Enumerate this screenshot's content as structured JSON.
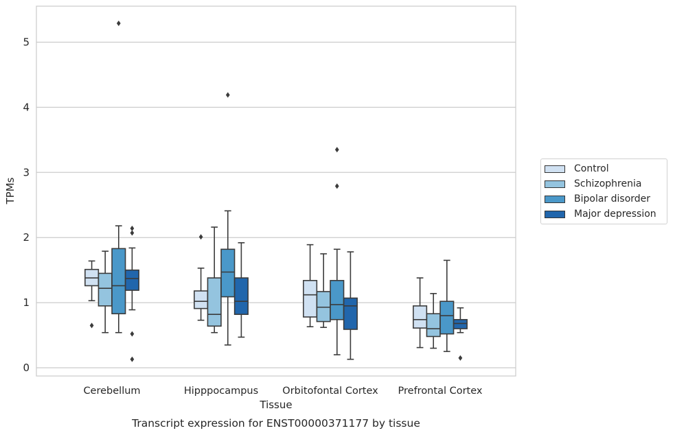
{
  "chart_data": {
    "type": "box",
    "xlabel": "Tissue",
    "ylabel": "TPMs",
    "caption": "Transcript expression for ENST00000371177 by tissue",
    "categories": [
      "Cerebellum",
      "Hipppocampus",
      "Orbitofontal Cortex",
      "Prefrontal Cortex"
    ],
    "ylim": [
      -0.1,
      5.55
    ],
    "yticks": [
      0,
      1,
      2,
      3,
      4,
      5
    ],
    "grid": "horizontal",
    "legend_position": "right",
    "series": [
      {
        "name": "Control",
        "color": "#d0e1f2",
        "boxes": [
          {
            "whislo": 1.03,
            "q1": 1.26,
            "med": 1.38,
            "q3": 1.51,
            "whishi": 1.64,
            "fliers": [
              0.65
            ]
          },
          {
            "whislo": 0.73,
            "q1": 0.91,
            "med": 1.02,
            "q3": 1.18,
            "whishi": 1.53,
            "fliers": [
              2.01
            ]
          },
          {
            "whislo": 0.63,
            "q1": 0.78,
            "med": 1.12,
            "q3": 1.34,
            "whishi": 1.89,
            "fliers": []
          },
          {
            "whislo": 0.31,
            "q1": 0.61,
            "med": 0.74,
            "q3": 0.95,
            "whishi": 1.38,
            "fliers": []
          }
        ]
      },
      {
        "name": "Schizophrenia",
        "color": "#94c4df",
        "boxes": [
          {
            "whislo": 0.54,
            "q1": 0.95,
            "med": 1.22,
            "q3": 1.45,
            "whishi": 1.79,
            "fliers": []
          },
          {
            "whislo": 0.54,
            "q1": 0.64,
            "med": 0.82,
            "q3": 1.38,
            "whishi": 2.16,
            "fliers": []
          },
          {
            "whislo": 0.62,
            "q1": 0.71,
            "med": 0.93,
            "q3": 1.17,
            "whishi": 1.75,
            "fliers": []
          },
          {
            "whislo": 0.3,
            "q1": 0.48,
            "med": 0.6,
            "q3": 0.83,
            "whishi": 1.14,
            "fliers": []
          }
        ]
      },
      {
        "name": "Bipolar disorder",
        "color": "#4a98c9",
        "boxes": [
          {
            "whislo": 0.54,
            "q1": 0.83,
            "med": 1.26,
            "q3": 1.83,
            "whishi": 2.18,
            "fliers": [
              5.29
            ]
          },
          {
            "whislo": 0.35,
            "q1": 1.09,
            "med": 1.47,
            "q3": 1.82,
            "whishi": 2.41,
            "fliers": [
              4.19
            ]
          },
          {
            "whislo": 0.2,
            "q1": 0.74,
            "med": 0.97,
            "q3": 1.34,
            "whishi": 1.82,
            "fliers": [
              3.35,
              2.79
            ]
          },
          {
            "whislo": 0.25,
            "q1": 0.52,
            "med": 0.8,
            "q3": 1.02,
            "whishi": 1.65,
            "fliers": []
          }
        ]
      },
      {
        "name": "Major depression",
        "color": "#2166ac",
        "boxes": [
          {
            "whislo": 0.89,
            "q1": 1.19,
            "med": 1.37,
            "q3": 1.5,
            "whishi": 1.84,
            "fliers": [
              2.14,
              2.07,
              0.52,
              0.13
            ]
          },
          {
            "whislo": 0.47,
            "q1": 0.82,
            "med": 1.02,
            "q3": 1.38,
            "whishi": 1.92,
            "fliers": []
          },
          {
            "whislo": 0.13,
            "q1": 0.59,
            "med": 0.95,
            "q3": 1.07,
            "whishi": 1.78,
            "fliers": []
          },
          {
            "whislo": 0.54,
            "q1": 0.6,
            "med": 0.68,
            "q3": 0.74,
            "whishi": 0.92,
            "fliers": [
              0.15
            ]
          }
        ]
      }
    ]
  }
}
